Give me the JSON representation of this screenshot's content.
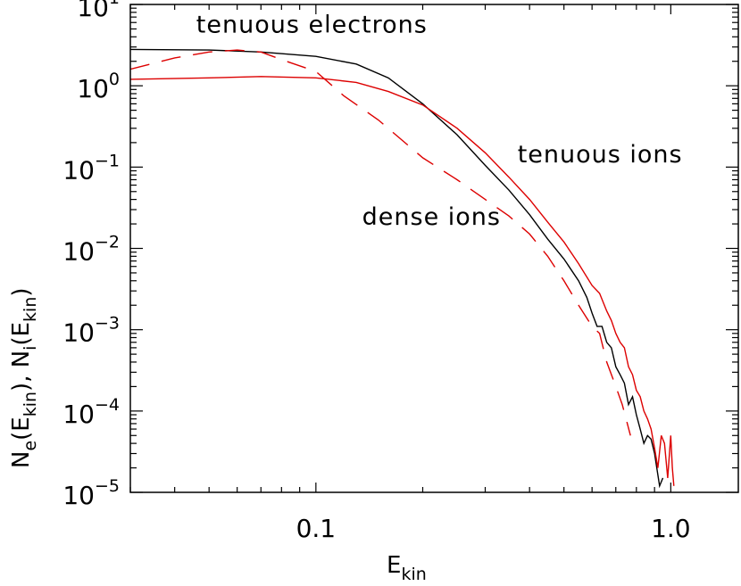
{
  "chart_data": {
    "type": "line",
    "title": "",
    "xlabel": {
      "main": "E",
      "sub": "kin"
    },
    "ylabel": {
      "parts": [
        "N",
        "e",
        "(E",
        "kin",
        "),  N",
        "i",
        "(E",
        "kin",
        ")"
      ]
    },
    "xscale": "log",
    "yscale": "log",
    "xlim": [
      0.03,
      1.55
    ],
    "ylim": [
      1e-05,
      10
    ],
    "xticks": [
      {
        "value": 0.1,
        "label": "0.1"
      },
      {
        "value": 1.0,
        "label": "1.0"
      }
    ],
    "yticks": [
      {
        "value": 10,
        "base": "10",
        "exp": "1"
      },
      {
        "value": 1,
        "base": "10",
        "exp": "0"
      },
      {
        "value": 0.1,
        "base": "10",
        "exp": "−1"
      },
      {
        "value": 0.01,
        "base": "10",
        "exp": "−2"
      },
      {
        "value": 0.001,
        "base": "10",
        "exp": "−3"
      },
      {
        "value": 0.0001,
        "base": "10",
        "exp": "−4"
      },
      {
        "value": 1e-05,
        "base": "10",
        "exp": "−5"
      }
    ],
    "grid": false,
    "annotations": [
      {
        "text": "tenuous electrons",
        "x": 0.046,
        "y": 4.5
      },
      {
        "text": "tenuous ions",
        "x": 0.37,
        "y": 0.115
      },
      {
        "text": "dense ions",
        "x": 0.135,
        "y": 0.0195
      }
    ],
    "series": [
      {
        "id": "tenuous-electrons",
        "color": "#000000",
        "style": "solid",
        "x": [
          0.03,
          0.05,
          0.07,
          0.1,
          0.13,
          0.16,
          0.2,
          0.25,
          0.3,
          0.35,
          0.4,
          0.45,
          0.5,
          0.55,
          0.58,
          0.6,
          0.62,
          0.64,
          0.66,
          0.68,
          0.7,
          0.72,
          0.74,
          0.76,
          0.78,
          0.8,
          0.82,
          0.84,
          0.86,
          0.88,
          0.9,
          0.93,
          0.95
        ],
        "y": [
          2.8,
          2.75,
          2.6,
          2.3,
          1.85,
          1.25,
          0.6,
          0.25,
          0.105,
          0.052,
          0.026,
          0.013,
          0.0074,
          0.004,
          0.0025,
          0.0016,
          0.0011,
          0.0011,
          0.0007,
          0.0006,
          0.00035,
          0.00028,
          0.00022,
          0.00012,
          0.00015,
          9e-05,
          6e-05,
          4e-05,
          5e-05,
          4.5e-05,
          3e-05,
          1.2e-05,
          1.5e-05
        ]
      },
      {
        "id": "tenuous-ions",
        "color": "#dd0000",
        "style": "solid",
        "x": [
          0.03,
          0.05,
          0.07,
          0.1,
          0.13,
          0.16,
          0.2,
          0.25,
          0.3,
          0.35,
          0.4,
          0.45,
          0.5,
          0.55,
          0.6,
          0.63,
          0.66,
          0.68,
          0.7,
          0.72,
          0.74,
          0.76,
          0.78,
          0.8,
          0.82,
          0.84,
          0.86,
          0.88,
          0.9,
          0.92,
          0.94,
          0.96,
          0.98,
          1.0,
          1.01,
          1.02
        ],
        "y": [
          1.2,
          1.25,
          1.3,
          1.25,
          1.1,
          0.85,
          0.58,
          0.3,
          0.15,
          0.075,
          0.04,
          0.021,
          0.012,
          0.0065,
          0.0035,
          0.0028,
          0.0017,
          0.0013,
          0.0009,
          0.0007,
          0.0006,
          0.00035,
          0.00028,
          0.00018,
          0.00015,
          0.0001,
          8e-05,
          6e-05,
          3.5e-05,
          2e-05,
          5e-05,
          4e-05,
          1.5e-05,
          5e-05,
          2e-05,
          1.2e-05
        ]
      },
      {
        "id": "dense-ions",
        "color": "#dd0000",
        "style": "dashed",
        "x": [
          0.03,
          0.04,
          0.05,
          0.06,
          0.07,
          0.08,
          0.1,
          0.12,
          0.15,
          0.2,
          0.25,
          0.3,
          0.35,
          0.4,
          0.45,
          0.5,
          0.55,
          0.6,
          0.63,
          0.66,
          0.7,
          0.73,
          0.77
        ],
        "y": [
          1.6,
          2.2,
          2.6,
          2.75,
          2.6,
          2.1,
          1.5,
          0.75,
          0.38,
          0.13,
          0.07,
          0.04,
          0.025,
          0.015,
          0.008,
          0.004,
          0.002,
          0.0011,
          0.0009,
          0.0004,
          0.0002,
          0.00012,
          5e-05
        ]
      }
    ]
  }
}
